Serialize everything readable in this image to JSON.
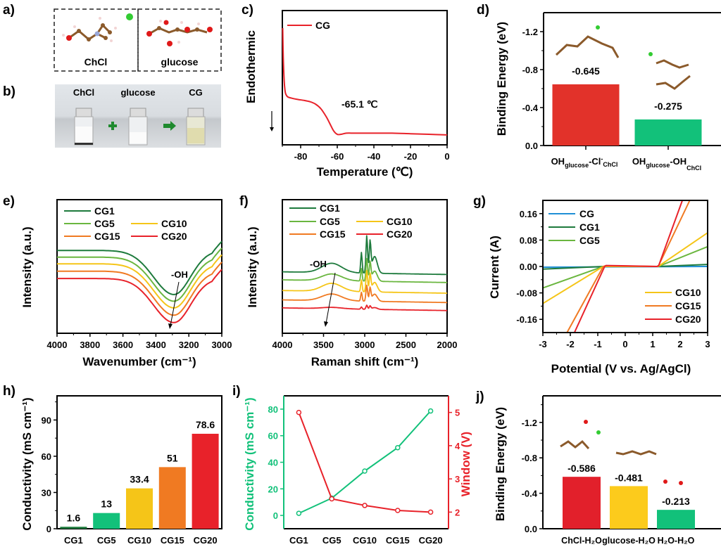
{
  "panels": {
    "a": {
      "label": "a)",
      "boxes": [
        "ChCl",
        "glucose"
      ],
      "icons": [
        "chcl-molecule-icon",
        "chloride-ion-icon",
        "glucose-molecule-icon"
      ]
    },
    "b": {
      "label": "b)",
      "vials": [
        "ChCl",
        "glucose",
        "CG"
      ],
      "operators": [
        "plus-icon",
        "arrow-right-icon"
      ]
    },
    "c": {
      "label": "c)",
      "chart_data": {
        "type": "line",
        "title": "",
        "xlabel": "Temperature (℃)",
        "ylabel": "Endothermic",
        "xlim": [
          -90,
          0
        ],
        "xticks": [
          -80,
          -60,
          -40,
          -20,
          0
        ],
        "legend": [
          "CG"
        ],
        "annotation": "-65.1 ℃",
        "series": [
          {
            "name": "CG",
            "color": "#e8222a",
            "x": [
              -89.8,
              -89.5,
              -89,
              -88.5,
              -88,
              -87,
              -85,
              -82,
              -78,
              -75,
              -72,
              -69,
              -66,
              -64,
              -62,
              -60,
              -58,
              -55,
              -50,
              -40,
              -30,
              -20,
              -10,
              0
            ],
            "y": [
              1.0,
              0.75,
              0.55,
              0.46,
              0.43,
              0.41,
              0.4,
              0.39,
              0.38,
              0.37,
              0.35,
              0.31,
              0.24,
              0.18,
              0.12,
              0.09,
              0.09,
              0.1,
              0.1,
              0.1,
              0.1,
              0.095,
              0.09,
              0.085
            ]
          }
        ]
      }
    },
    "d": {
      "label": "d)",
      "chart_data": {
        "type": "bar",
        "ylabel": "Binding Energy (eV)",
        "ylim": [
          0,
          -1.4
        ],
        "yticks": [
          0.0,
          -0.4,
          -0.8,
          -1.2
        ],
        "ytick_labels": [
          "0.0",
          "-0.4",
          "-0.8",
          "-1.2"
        ],
        "categories": [
          "OH_glucose-Cl⁻_ChCl",
          "OH_glucose-OH_ChCl"
        ],
        "category_parts": [
          [
            "OH",
            "glucose",
            "-Cl",
            "-",
            "ChCl"
          ],
          [
            "OH",
            "glucose",
            "-OH",
            "",
            "ChCl"
          ]
        ],
        "values": [
          -0.645,
          -0.275
        ],
        "value_labels": [
          "-0.645",
          "-0.275"
        ],
        "colors": [
          "#e2322a",
          "#12c17a"
        ]
      }
    },
    "e": {
      "label": "e)",
      "chart_data": {
        "type": "line",
        "xlabel": "Wavenumber (cm⁻¹)",
        "ylabel": "Intensity (a.u.)",
        "xlim": [
          4000,
          3000
        ],
        "xticks": [
          4000,
          3800,
          3600,
          3400,
          3200,
          3000
        ],
        "annotation": "-OH",
        "legend": [
          "CG1",
          "CG5",
          "CG10",
          "CG15",
          "CG20"
        ],
        "series": [
          {
            "name": "CG1",
            "color": "#1d7a3c",
            "offset": 0.0
          },
          {
            "name": "CG5",
            "color": "#6ab63f",
            "offset": -0.05
          },
          {
            "name": "CG10",
            "color": "#f5c518",
            "offset": -0.1
          },
          {
            "name": "CG15",
            "color": "#f07a22",
            "offset": -0.155
          },
          {
            "name": "CG20",
            "color": "#e8222a",
            "offset": -0.21
          }
        ]
      }
    },
    "f": {
      "label": "f)",
      "chart_data": {
        "type": "line",
        "xlabel": "Raman shift (cm⁻¹)",
        "ylabel": "Intensity (a.u.)",
        "xlim": [
          4000,
          2000
        ],
        "xticks": [
          4000,
          3500,
          3000,
          2500,
          2000
        ],
        "annotation": "-OH",
        "legend": [
          "CG1",
          "CG5",
          "CG10",
          "CG15",
          "CG20"
        ],
        "series": [
          {
            "name": "CG1",
            "color": "#1d7a3c",
            "base": 0.46,
            "ohpeak": 0.07,
            "chpeak": 0.28
          },
          {
            "name": "CG5",
            "color": "#6ab63f",
            "base": 0.4,
            "ohpeak": 0.05,
            "chpeak": 0.17
          },
          {
            "name": "CG10",
            "color": "#f5c518",
            "base": 0.32,
            "ohpeak": 0.06,
            "chpeak": 0.16
          },
          {
            "name": "CG15",
            "color": "#f07a22",
            "base": 0.25,
            "ohpeak": 0.05,
            "chpeak": 0.12
          },
          {
            "name": "CG20",
            "color": "#e8222a",
            "base": 0.19,
            "ohpeak": 0.01,
            "chpeak": 0.03
          }
        ]
      }
    },
    "g": {
      "label": "g)",
      "chart_data": {
        "type": "line",
        "xlabel": "Potential (V vs. Ag/AgCl)",
        "ylabel": "Current (A)",
        "xlim": [
          -3,
          3
        ],
        "ylim": [
          -0.2,
          0.2
        ],
        "xticks": [
          -3,
          -2,
          -1,
          0,
          1,
          2,
          3
        ],
        "yticks": [
          -0.16,
          -0.08,
          0.0,
          0.08,
          0.16
        ],
        "ytick_labels": [
          "-0.16",
          "-0.08",
          "0.00",
          "0.08",
          "0.16"
        ],
        "legend_top_left": [
          "CG",
          "CG1",
          "CG5"
        ],
        "legend_bottom_right": [
          "CG10",
          "CG15",
          "CG20"
        ],
        "series": [
          {
            "name": "CG",
            "color": "#1f8fd6",
            "x": [
              -3,
              3
            ],
            "y": [
              -0.002,
              0.0
            ]
          },
          {
            "name": "CG1",
            "color": "#1d7a3c",
            "x": [
              -3,
              -0.8,
              1.2,
              3
            ],
            "y": [
              -0.008,
              0.0,
              0.0,
              0.006
            ]
          },
          {
            "name": "CG5",
            "color": "#6ab63f",
            "x": [
              -3,
              -0.8,
              1.2,
              3
            ],
            "y": [
              -0.065,
              0.0,
              0.0,
              0.06
            ]
          },
          {
            "name": "CG10",
            "color": "#f5c518",
            "x": [
              -3,
              -0.8,
              1.2,
              3
            ],
            "y": [
              -0.112,
              0.0,
              0.0,
              0.102
            ]
          },
          {
            "name": "CG15",
            "color": "#f07a22",
            "x": [
              -2.12,
              -0.8,
              -0.72,
              1.2,
              2.35
            ],
            "y": [
              -0.2,
              0.0,
              0.002,
              0.0,
              0.2
            ]
          },
          {
            "name": "CG20",
            "color": "#e8222a",
            "x": [
              -1.85,
              -0.75,
              -0.7,
              1.15,
              1.22,
              2.08
            ],
            "y": [
              -0.2,
              0.0,
              0.003,
              0.0,
              0.003,
              0.2
            ]
          }
        ]
      }
    },
    "h": {
      "label": "h)",
      "chart_data": {
        "type": "bar",
        "ylabel": "Conductivity (mS cm⁻¹)",
        "ylim": [
          0,
          110
        ],
        "yticks": [
          0,
          30,
          60,
          90
        ],
        "categories": [
          "CG1",
          "CG5",
          "CG10",
          "CG15",
          "CG20"
        ],
        "values": [
          1.6,
          13,
          33.4,
          51,
          78.6
        ],
        "value_labels": [
          "1.6",
          "13",
          "33.4",
          "51",
          "78.6"
        ],
        "colors": [
          "#1d7a3c",
          "#12c17a",
          "#f5c518",
          "#f07a22",
          "#e8222a"
        ]
      }
    },
    "i": {
      "label": "i)",
      "chart_data": {
        "type": "line",
        "categories": [
          "CG1",
          "CG5",
          "CG10",
          "CG15",
          "CG20"
        ],
        "ylabel_left": "Conductivity (mS cm⁻¹)",
        "ylabel_right": "Window (V)",
        "ylim_left": [
          -10,
          90
        ],
        "ylim_right": [
          1.5,
          5.5
        ],
        "yticks_left": [
          0,
          20,
          40,
          60,
          80
        ],
        "yticks_right": [
          2,
          3,
          4,
          5
        ],
        "series": [
          {
            "name": "Conductivity",
            "axis": "left",
            "color": "#12c17a",
            "values": [
              1.6,
              13,
              33.4,
              51,
              78.6
            ]
          },
          {
            "name": "Window",
            "axis": "right",
            "color": "#e8222a",
            "values": [
              5.0,
              2.4,
              2.2,
              2.05,
              2.0
            ]
          }
        ]
      }
    },
    "j": {
      "label": "j)",
      "chart_data": {
        "type": "bar",
        "ylabel": "Binding Energy (eV)",
        "ylim": [
          0,
          -1.5
        ],
        "yticks": [
          0.0,
          -0.4,
          -0.8,
          -1.2
        ],
        "ytick_labels": [
          "0.0",
          "-0.4",
          "-0.8",
          "-1.2"
        ],
        "categories": [
          "ChCl-H₂O",
          "glucose-H₂O",
          "H₂O-H₂O"
        ],
        "values": [
          -0.586,
          -0.481,
          -0.213
        ],
        "value_labels": [
          "-0.586",
          "-0.481",
          "-0.213"
        ],
        "colors": [
          "#e2202b",
          "#fccb1c",
          "#12c17a"
        ]
      }
    }
  }
}
